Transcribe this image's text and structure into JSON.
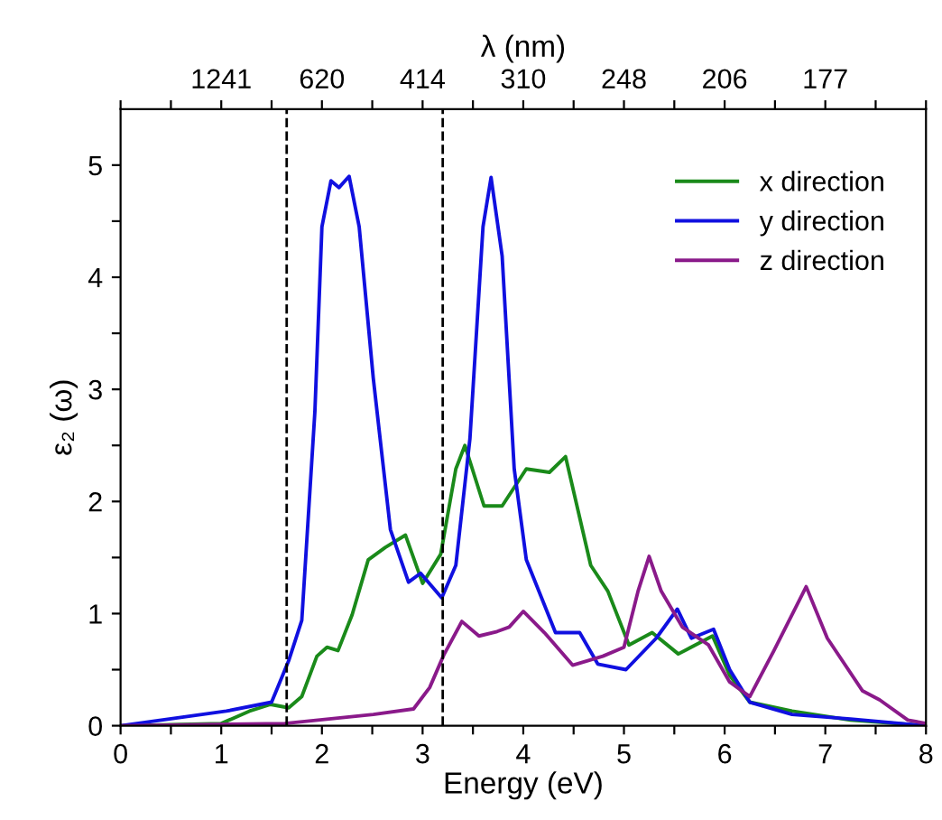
{
  "chart_data": {
    "type": "line",
    "xlabel": "Energy (eV)",
    "ylabel": "ε₂ (ω)",
    "x2label": "λ (nm)",
    "xlim": [
      0,
      8
    ],
    "ylim": [
      0,
      5.5
    ],
    "xticks": [
      0,
      {
        "value": 0.5,
        "label": null
      },
      1,
      {
        "value": 1.5,
        "label": null
      },
      2,
      {
        "value": 2.5,
        "label": null
      },
      3,
      {
        "value": 3.5,
        "label": null
      },
      4,
      {
        "value": 4.5,
        "label": null
      },
      5,
      {
        "value": 5.5,
        "label": null
      },
      6,
      {
        "value": 6.5,
        "label": null
      },
      7,
      {
        "value": 7.5,
        "label": null
      },
      8
    ],
    "yticks": [
      0,
      {
        "value": 0.5,
        "label": null
      },
      1,
      {
        "value": 1.5,
        "label": null
      },
      2,
      {
        "value": 2.5,
        "label": null
      },
      3,
      {
        "value": 3.5,
        "label": null
      },
      4,
      {
        "value": 4.5,
        "label": null
      },
      5
    ],
    "annotations": [
      {
        "text": "1241",
        "x": 1
      },
      {
        "text": "620",
        "x": 2
      },
      {
        "text": "414",
        "x": 3
      },
      {
        "text": "310",
        "x": 4
      },
      {
        "text": "248",
        "x": 5
      },
      {
        "text": "206",
        "x": 6
      },
      {
        "text": "177",
        "x": 7
      }
    ],
    "legend": "top right",
    "grid": false,
    "ref_lines": [
      {
        "axis": "x",
        "value": 1.65,
        "color": "#000000",
        "line_style": "dashed"
      },
      {
        "axis": "x",
        "value": 3.2,
        "color": "#000000",
        "line_style": "dashed"
      }
    ],
    "series": [
      {
        "name": "x direction",
        "color": "#1a8a1a",
        "x": [
          0,
          1,
          1.28,
          1.49,
          1.67,
          1.8,
          1.95,
          2.05,
          2.16,
          2.3,
          2.46,
          2.63,
          2.83,
          3.0,
          3.18,
          3.33,
          3.42,
          3.61,
          3.79,
          4.03,
          4.26,
          4.42,
          4.67,
          4.84,
          5.05,
          5.28,
          5.54,
          5.88,
          6.05,
          6.25,
          6.67,
          7.25,
          8
        ],
        "values": [
          0,
          0.02,
          0.13,
          0.19,
          0.16,
          0.26,
          0.62,
          0.7,
          0.67,
          0.99,
          1.48,
          1.59,
          1.7,
          1.27,
          1.53,
          2.29,
          2.5,
          1.96,
          1.96,
          2.29,
          2.26,
          2.4,
          1.43,
          1.2,
          0.72,
          0.83,
          0.64,
          0.8,
          0.45,
          0.21,
          0.13,
          0.05,
          0
        ]
      },
      {
        "name": "y direction",
        "color": "#1010e0",
        "x": [
          0,
          1.05,
          1.5,
          1.67,
          1.8,
          1.93,
          2.0,
          2.09,
          2.17,
          2.27,
          2.37,
          2.51,
          2.68,
          2.86,
          2.98,
          3.19,
          3.33,
          3.47,
          3.6,
          3.68,
          3.79,
          3.91,
          4.03,
          4.32,
          4.56,
          4.74,
          5.02,
          5.32,
          5.53,
          5.67,
          5.89,
          6.05,
          6.25,
          6.67,
          7.25,
          8
        ],
        "values": [
          0,
          0.13,
          0.21,
          0.58,
          0.94,
          2.8,
          4.45,
          4.86,
          4.8,
          4.9,
          4.45,
          3.1,
          1.75,
          1.28,
          1.36,
          1.14,
          1.43,
          2.56,
          4.45,
          4.89,
          4.19,
          2.29,
          1.48,
          0.83,
          0.83,
          0.55,
          0.5,
          0.78,
          1.04,
          0.78,
          0.86,
          0.5,
          0.21,
          0.1,
          0.06,
          0
        ]
      },
      {
        "name": "z direction",
        "color": "#8a1a8a",
        "x": [
          0,
          1.63,
          2.51,
          2.91,
          3.07,
          3.21,
          3.39,
          3.56,
          3.74,
          3.86,
          4.0,
          4.21,
          4.49,
          4.79,
          5.0,
          5.14,
          5.25,
          5.37,
          5.58,
          5.84,
          6.05,
          6.25,
          6.49,
          6.81,
          7.02,
          7.37,
          7.54,
          7.82,
          8
        ],
        "values": [
          0,
          0.02,
          0.1,
          0.15,
          0.34,
          0.63,
          0.93,
          0.8,
          0.84,
          0.88,
          1.02,
          0.83,
          0.54,
          0.62,
          0.7,
          1.2,
          1.51,
          1.2,
          0.88,
          0.72,
          0.39,
          0.26,
          0.67,
          1.24,
          0.78,
          0.31,
          0.23,
          0.05,
          0.02
        ]
      }
    ]
  }
}
